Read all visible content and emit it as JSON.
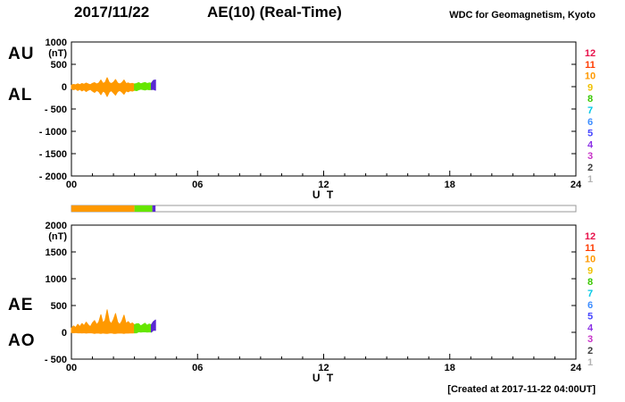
{
  "header": {
    "date": "2017/11/22",
    "title": "AE(10) (Real-Time)",
    "source": "WDC for Geomagnetism, Kyoto"
  },
  "footer": {
    "created": "[Created at 2017-11-22 04:00UT]"
  },
  "station_colors": [
    "#e8114b",
    "#ff3c00",
    "#ff9900",
    "#f0c000",
    "#39c800",
    "#00c8e6",
    "#3c8cff",
    "#4646ff",
    "#8c32e6",
    "#c832c8",
    "#3c3c3c",
    "#b4b4b4"
  ],
  "availability_bar": {
    "xlim": [
      0,
      24
    ],
    "segments": [
      {
        "from": 0,
        "to": 3.0,
        "color": "#ff9900"
      },
      {
        "from": 3.0,
        "to": 3.85,
        "color": "#66e600"
      },
      {
        "from": 3.85,
        "to": 4.0,
        "color": "#5a28d2"
      }
    ]
  },
  "chart_data": [
    {
      "type": "area",
      "name": "au-al",
      "left_labels": [
        "AU",
        "AL"
      ],
      "unit": "(nT)",
      "ylim": [
        -2000,
        1000
      ],
      "yticks": [
        "1000",
        "500",
        "0",
        "- 500",
        "- 1000",
        "- 1500",
        "- 2000"
      ],
      "xlim": [
        0,
        24
      ],
      "xticks": [
        "00",
        "06",
        "12",
        "18",
        "24"
      ],
      "xlabel": "U T",
      "x_start": 0,
      "x_step": 0.1,
      "station_numbers": [
        "12",
        "11",
        "10",
        "9",
        "8",
        "7",
        "6",
        "5",
        "4",
        "3",
        "2",
        "1"
      ],
      "segments": [
        {
          "from": 0,
          "to": 3.0,
          "color": "#ff9900"
        },
        {
          "from": 3.0,
          "to": 3.9,
          "color": "#66e600"
        },
        {
          "from": 3.8,
          "to": 4.0,
          "color": "#5a28d2"
        }
      ],
      "series": [
        {
          "name": "AU",
          "values": [
            35,
            50,
            40,
            65,
            45,
            70,
            55,
            80,
            60,
            45,
            75,
            90,
            60,
            80,
            150,
            75,
            95,
            200,
            90,
            70,
            100,
            160,
            80,
            60,
            90,
            150,
            70,
            85,
            65,
            75,
            60,
            70,
            90,
            65,
            80,
            95,
            70,
            85,
            75,
            140,
            150
          ]
        },
        {
          "name": "AL",
          "values": [
            -45,
            -70,
            -50,
            -85,
            -60,
            -95,
            -70,
            -110,
            -80,
            -60,
            -100,
            -130,
            -85,
            -110,
            -180,
            -100,
            -130,
            -220,
            -120,
            -90,
            -140,
            -190,
            -110,
            -85,
            -120,
            -170,
            -95,
            -115,
            -90,
            -100,
            -80,
            -90,
            -70,
            -55,
            -65,
            -75,
            -60,
            -70,
            -65,
            -60,
            -80
          ]
        }
      ]
    },
    {
      "type": "area",
      "name": "ae-ao",
      "left_labels": [
        "AE",
        "AO"
      ],
      "unit": "(nT)",
      "ylim": [
        -500,
        2000
      ],
      "yticks": [
        "2000",
        "1500",
        "1000",
        "500",
        "0",
        "- 500"
      ],
      "xlim": [
        0,
        24
      ],
      "xticks": [
        "00",
        "06",
        "12",
        "18",
        "24"
      ],
      "xlabel": "U T",
      "x_start": 0,
      "x_step": 0.1,
      "station_numbers": [
        "12",
        "11",
        "10",
        "9",
        "8",
        "7",
        "6",
        "5",
        "4",
        "3",
        "2",
        "1"
      ],
      "segments": [
        {
          "from": 0,
          "to": 3.0,
          "color": "#ff9900"
        },
        {
          "from": 3.0,
          "to": 3.9,
          "color": "#66e600"
        },
        {
          "from": 3.8,
          "to": 4.0,
          "color": "#5a28d2"
        }
      ],
      "series": [
        {
          "name": "AE",
          "values": [
            80,
            120,
            90,
            150,
            105,
            165,
            125,
            190,
            140,
            105,
            175,
            220,
            145,
            190,
            330,
            175,
            225,
            420,
            210,
            160,
            240,
            350,
            190,
            145,
            210,
            320,
            165,
            200,
            155,
            175,
            140,
            160,
            160,
            120,
            145,
            170,
            130,
            155,
            140,
            200,
            230
          ]
        },
        {
          "name": "AO",
          "values": [
            -5,
            -10,
            -5,
            -10,
            -8,
            -13,
            -8,
            -15,
            -10,
            -8,
            -13,
            -20,
            -13,
            -15,
            -20,
            -13,
            -18,
            -20,
            -15,
            -10,
            -20,
            -20,
            -15,
            -13,
            -15,
            -20,
            -13,
            -15,
            -13,
            -13,
            -10,
            -10,
            10,
            5,
            8,
            10,
            5,
            8,
            5,
            40,
            35
          ]
        }
      ]
    }
  ]
}
